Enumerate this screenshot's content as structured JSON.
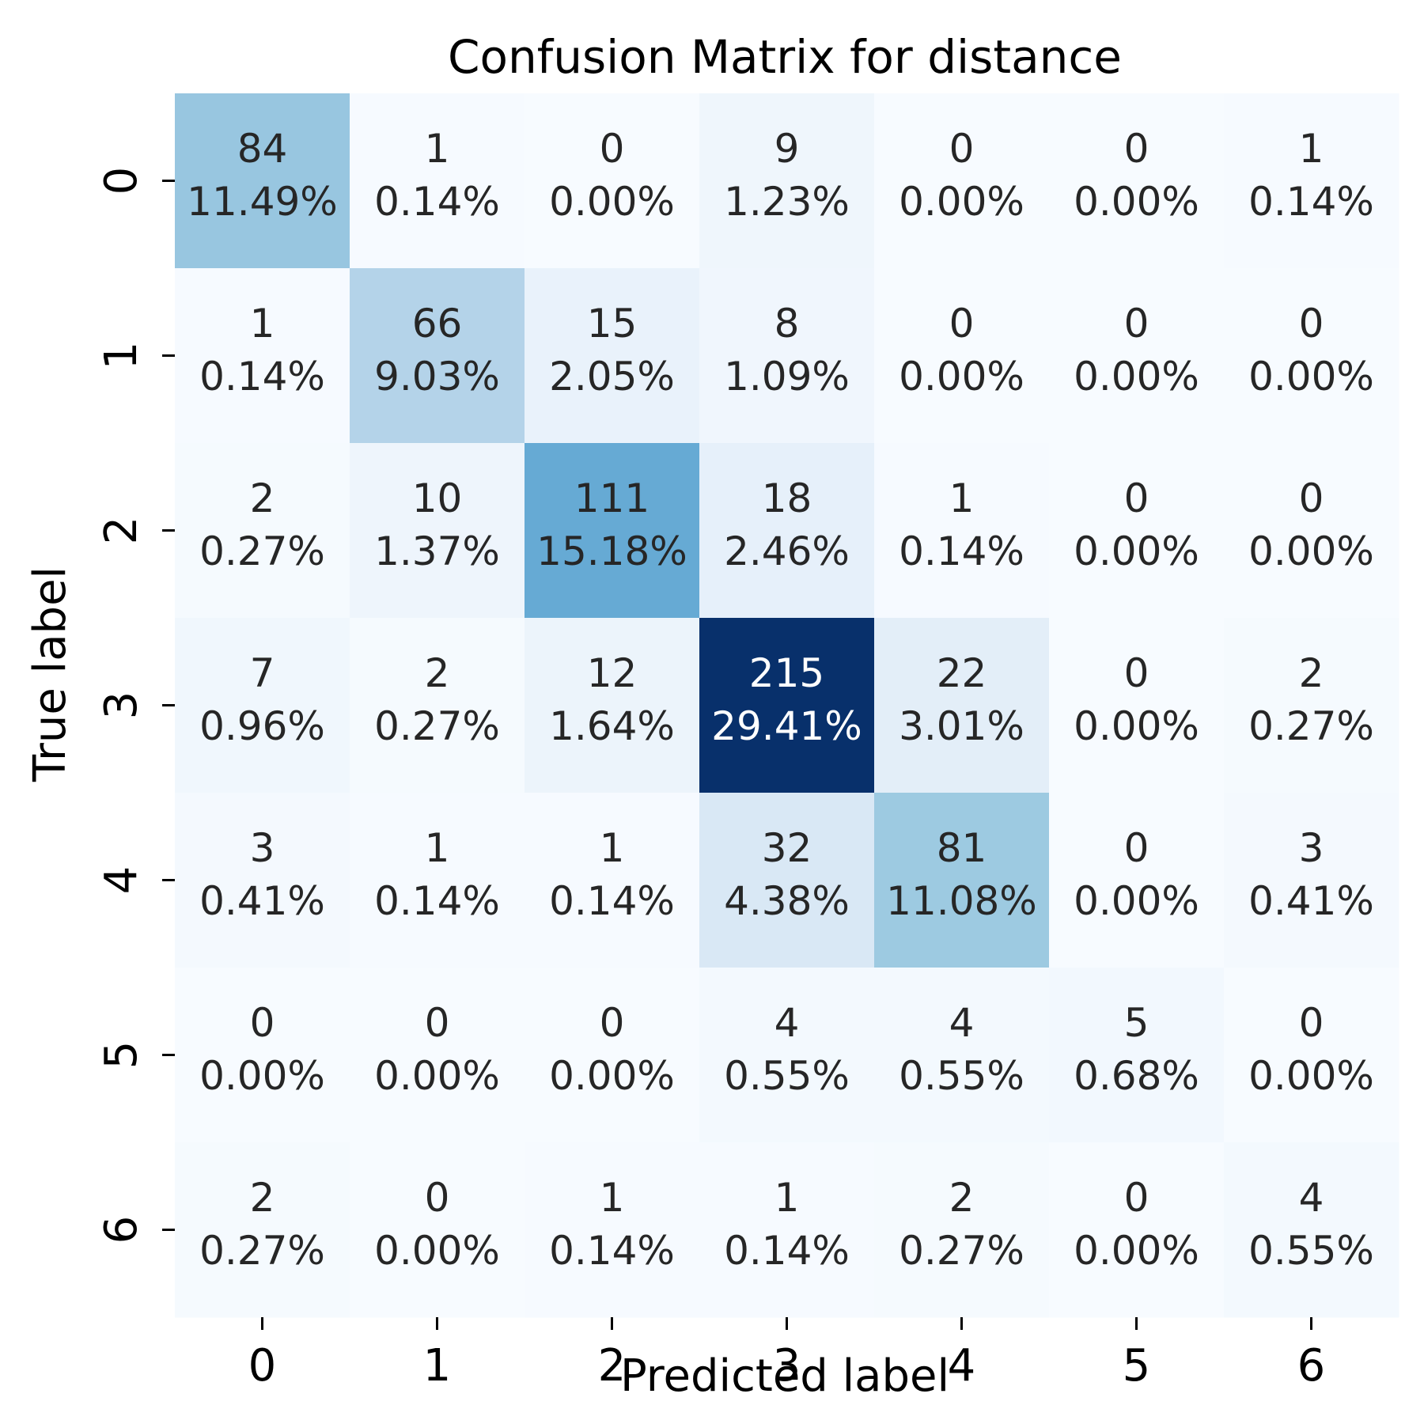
{
  "chart_data": {
    "type": "heatmap",
    "title": "Confusion Matrix for distance",
    "xlabel": "Predicted label",
    "ylabel": "True label",
    "x_categories": [
      "0",
      "1",
      "2",
      "3",
      "4",
      "5",
      "6"
    ],
    "y_categories": [
      "0",
      "1",
      "2",
      "3",
      "4",
      "5",
      "6"
    ],
    "values": [
      [
        84,
        1,
        0,
        9,
        0,
        0,
        1
      ],
      [
        1,
        66,
        15,
        8,
        0,
        0,
        0
      ],
      [
        2,
        10,
        111,
        18,
        1,
        0,
        0
      ],
      [
        7,
        2,
        12,
        215,
        22,
        0,
        2
      ],
      [
        3,
        1,
        1,
        32,
        81,
        0,
        3
      ],
      [
        0,
        0,
        0,
        4,
        4,
        5,
        0
      ],
      [
        2,
        0,
        1,
        1,
        2,
        0,
        4
      ]
    ],
    "percentages": [
      [
        "11.49%",
        "0.14%",
        "0.00%",
        "1.23%",
        "0.00%",
        "0.00%",
        "0.14%"
      ],
      [
        "0.14%",
        "9.03%",
        "2.05%",
        "1.09%",
        "0.00%",
        "0.00%",
        "0.00%"
      ],
      [
        "0.27%",
        "1.37%",
        "15.18%",
        "2.46%",
        "0.14%",
        "0.00%",
        "0.00%"
      ],
      [
        "0.96%",
        "0.27%",
        "1.64%",
        "29.41%",
        "3.01%",
        "0.00%",
        "0.27%"
      ],
      [
        "0.41%",
        "0.14%",
        "0.14%",
        "4.38%",
        "11.08%",
        "0.00%",
        "0.41%"
      ],
      [
        "0.00%",
        "0.00%",
        "0.00%",
        "0.55%",
        "0.55%",
        "0.68%",
        "0.00%"
      ],
      [
        "0.27%",
        "0.00%",
        "0.14%",
        "0.14%",
        "0.27%",
        "0.00%",
        "0.55%"
      ]
    ],
    "colormap": "Blues",
    "color_min": 0,
    "color_max": 215,
    "colorbar": false,
    "grid": false,
    "legend": "none"
  }
}
